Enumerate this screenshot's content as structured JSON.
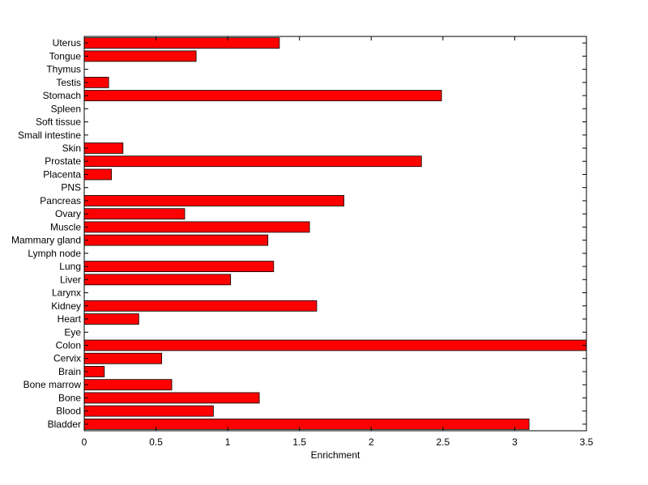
{
  "chart_data": {
    "type": "bar",
    "orientation": "horizontal",
    "title": "",
    "xlabel": "Enrichment",
    "ylabel": "",
    "xlim": [
      0,
      3.5
    ],
    "xticks": [
      "0",
      "0.5",
      "1",
      "1.5",
      "2",
      "2.5",
      "3",
      "3.5"
    ],
    "grid": false,
    "bar_color": "#ff0000",
    "categories": [
      "Bladder",
      "Blood",
      "Bone",
      "Bone marrow",
      "Brain",
      "Cervix",
      "Colon",
      "Eye",
      "Heart",
      "Kidney",
      "Larynx",
      "Liver",
      "Lung",
      "Lymph node",
      "Mammary gland",
      "Muscle",
      "Ovary",
      "Pancreas",
      "PNS",
      "Placenta",
      "Prostate",
      "Skin",
      "Small intestine",
      "Soft tissue",
      "Spleen",
      "Stomach",
      "Testis",
      "Thymus",
      "Tongue",
      "Uterus"
    ],
    "values": [
      3.1,
      0.9,
      1.22,
      0.61,
      0.14,
      0.54,
      3.5,
      0,
      0.38,
      1.62,
      0,
      1.02,
      1.32,
      0,
      1.28,
      1.57,
      0.7,
      1.81,
      0,
      0.19,
      2.35,
      0.27,
      0,
      0,
      0,
      2.49,
      0.17,
      0,
      0.78,
      1.36
    ]
  }
}
